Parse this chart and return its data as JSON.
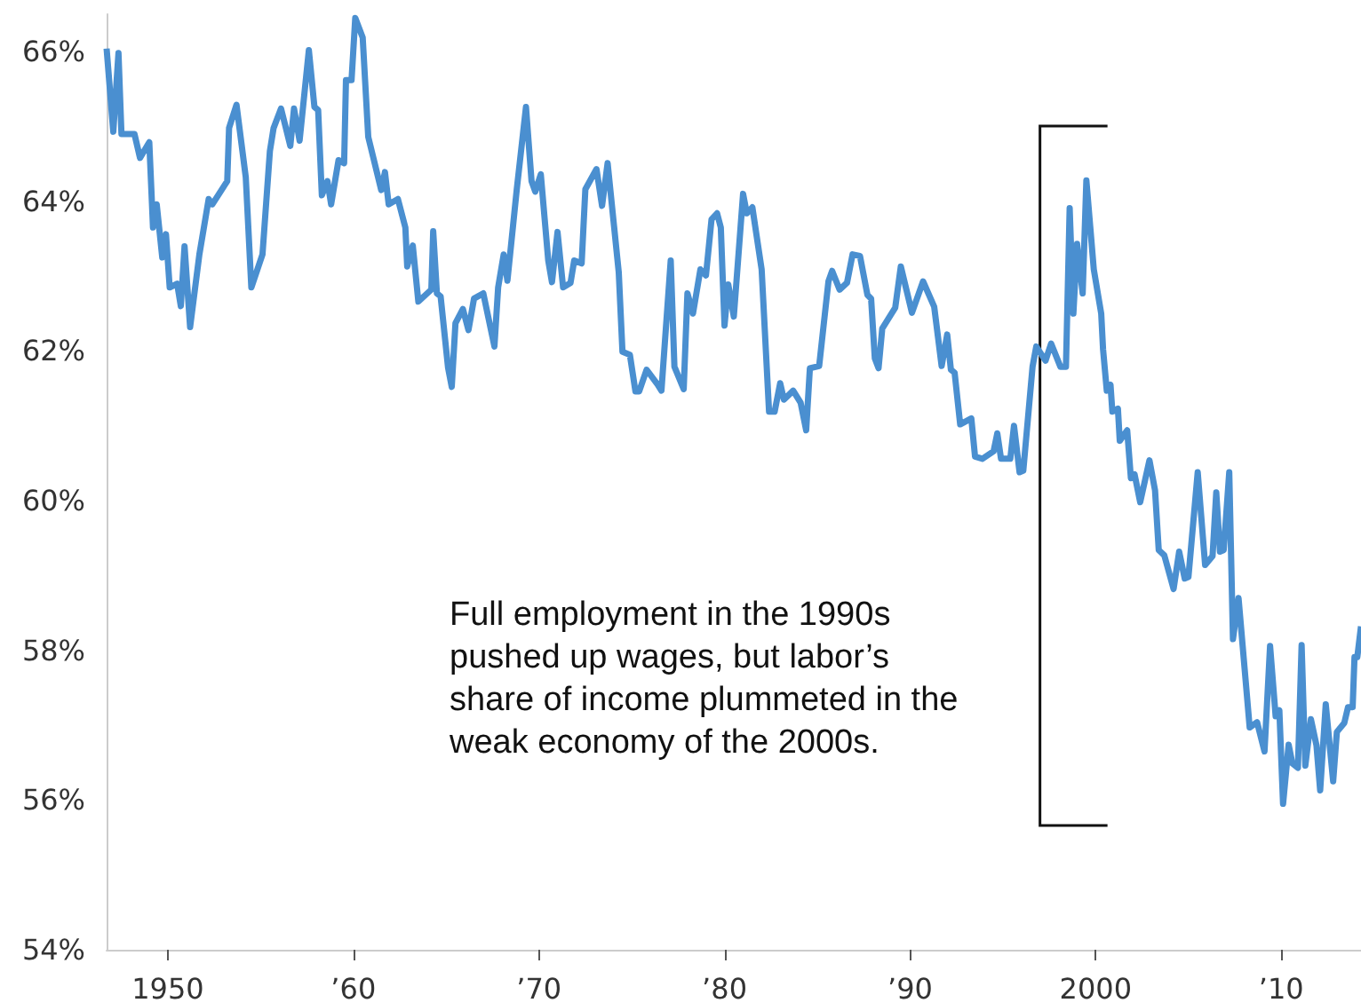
{
  "chart_data": {
    "type": "line",
    "x": [
      1946.7,
      1947.06,
      1947.34,
      1947.5,
      1948.2,
      1948.5,
      1949.0,
      1949.2,
      1949.4,
      1949.7,
      1949.9,
      1950.1,
      1950.5,
      1950.7,
      1950.9,
      1951.2,
      1951.7,
      1952.2,
      1952.4,
      1953.2,
      1953.3,
      1953.7,
      1954.2,
      1954.5,
      1955.1,
      1955.5,
      1955.7,
      1956.1,
      1956.6,
      1956.8,
      1957.1,
      1957.6,
      1957.9,
      1958.1,
      1958.3,
      1958.6,
      1958.8,
      1959.2,
      1959.5,
      1959.6,
      1959.9,
      1960.1,
      1960.5,
      1960.8,
      1961.5,
      1961.7,
      1961.9,
      1962.4,
      1962.8,
      1962.9,
      1963.2,
      1963.5,
      1964.2,
      1964.3,
      1964.5,
      1964.7,
      1965.1,
      1965.3,
      1965.5,
      1965.9,
      1966.2,
      1966.5,
      1967.0,
      1967.6,
      1967.8,
      1968.1,
      1968.3,
      1968.8,
      1969.3,
      1969.6,
      1969.8,
      1970.1,
      1970.5,
      1970.7,
      1971.0,
      1971.3,
      1971.7,
      1971.9,
      1972.3,
      1972.5,
      1973.1,
      1973.4,
      1973.7,
      1974.3,
      1974.5,
      1974.9,
      1975.2,
      1975.4,
      1975.8,
      1976.4,
      1976.6,
      1977.1,
      1977.3,
      1977.8,
      1978.0,
      1978.3,
      1978.7,
      1979.0,
      1979.3,
      1979.6,
      1979.8,
      1980.0,
      1980.2,
      1980.5,
      1981.0,
      1981.2,
      1981.5,
      1982.0,
      1982.4,
      1982.7,
      1983.0,
      1983.2,
      1983.7,
      1984.1,
      1984.4,
      1984.6,
      1985.1,
      1985.6,
      1985.8,
      1986.2,
      1986.6,
      1986.9,
      1987.3,
      1987.7,
      1987.9,
      1988.1,
      1988.3,
      1988.5,
      1989.2,
      1989.5,
      1990.1,
      1990.7,
      1991.3,
      1991.7,
      1992.0,
      1992.2,
      1992.4,
      1992.7,
      1993.3,
      1993.5,
      1993.9,
      1994.5,
      1994.7,
      1994.9,
      1995.4,
      1995.6,
      1995.9,
      1996.1,
      1996.6,
      1996.8,
      1997.3,
      1997.6,
      1998.1,
      1998.4,
      1998.6,
      1998.8,
      1999.0,
      1999.3,
      1999.5,
      1999.9,
      2000.3,
      2000.4,
      2000.6,
      2000.8,
      2000.9,
      2001.2,
      2001.3,
      2001.7,
      2001.9,
      2002.1,
      2002.4,
      2002.9,
      2003.2,
      2003.4,
      2003.7,
      2004.2,
      2004.5,
      2004.8,
      2005.0,
      2005.5,
      2005.9,
      2006.3,
      2006.5,
      2006.7,
      2006.9,
      2007.2,
      2007.4,
      2007.7,
      2008.3,
      2008.7,
      2009.1,
      2009.4,
      2009.7,
      2009.9,
      2010.1,
      2010.4,
      2010.6,
      2010.9,
      2011.1,
      2011.3,
      2011.6,
      2011.9,
      2012.1,
      2012.4,
      2012.8,
      2013.0,
      2013.4,
      2013.6,
      2013.85,
      2013.95,
      2014.1,
      2014.3
    ],
    "values": [
      66.04,
      64.93,
      65.98,
      64.9,
      64.9,
      64.58,
      64.79,
      63.65,
      63.96,
      63.25,
      63.56,
      62.85,
      62.9,
      62.6,
      63.4,
      62.32,
      63.29,
      64.03,
      63.96,
      64.27,
      64.98,
      65.29,
      64.32,
      62.85,
      63.29,
      64.67,
      64.98,
      65.24,
      64.74,
      65.24,
      64.81,
      66.02,
      65.26,
      65.22,
      64.08,
      64.27,
      63.96,
      64.55,
      64.51,
      65.62,
      65.62,
      66.45,
      66.19,
      64.86,
      64.15,
      64.39,
      63.96,
      64.03,
      63.65,
      63.13,
      63.41,
      62.66,
      62.82,
      63.6,
      62.77,
      62.73,
      61.78,
      61.52,
      62.37,
      62.56,
      62.28,
      62.7,
      62.77,
      62.06,
      62.85,
      63.29,
      62.94,
      64.15,
      65.26,
      64.27,
      64.13,
      64.36,
      63.21,
      62.92,
      63.59,
      62.85,
      62.91,
      63.21,
      63.17,
      64.16,
      64.43,
      63.94,
      64.51,
      63.05,
      61.99,
      61.95,
      61.46,
      61.46,
      61.75,
      61.55,
      61.47,
      63.21,
      61.79,
      61.49,
      62.77,
      62.5,
      63.09,
      63.01,
      63.76,
      63.84,
      63.65,
      62.34,
      62.89,
      62.46,
      64.1,
      63.84,
      63.92,
      63.09,
      61.19,
      61.19,
      61.57,
      61.35,
      61.47,
      61.31,
      60.94,
      61.77,
      61.8,
      62.93,
      63.07,
      62.82,
      62.91,
      63.29,
      63.27,
      62.75,
      62.7,
      61.9,
      61.77,
      62.3,
      62.58,
      63.13,
      62.51,
      62.93,
      62.59,
      61.8,
      62.22,
      61.75,
      61.71,
      61.02,
      61.1,
      60.59,
      60.56,
      60.66,
      60.9,
      60.56,
      60.56,
      61.0,
      60.38,
      60.4,
      61.79,
      62.06,
      61.87,
      62.1,
      61.79,
      61.79,
      63.91,
      62.5,
      63.43,
      62.77,
      64.28,
      63.09,
      62.5,
      62.02,
      61.47,
      61.55,
      61.19,
      61.23,
      60.8,
      60.94,
      60.3,
      60.35,
      59.98,
      60.54,
      60.14,
      59.34,
      59.27,
      58.82,
      59.32,
      58.96,
      58.98,
      60.38,
      59.14,
      59.26,
      60.11,
      59.32,
      59.34,
      60.38,
      58.15,
      58.7,
      56.97,
      57.04,
      56.65,
      58.06,
      57.12,
      57.2,
      55.95,
      56.74,
      56.49,
      56.43,
      58.07,
      56.46,
      57.08,
      56.73,
      56.13,
      57.28,
      56.25,
      56.91,
      57.03,
      57.24,
      57.24,
      57.91,
      57.91,
      58.32
    ],
    "color": "#4a8fd0",
    "xlim": [
      1946.7,
      2014.3
    ],
    "xticks": [
      1950,
      {
        "value": 1960,
        "label": "’60"
      },
      {
        "value": 1970,
        "label": "’70"
      },
      {
        "value": 1980,
        "label": "’80"
      },
      {
        "value": 1990,
        "label": "’90"
      },
      2000,
      {
        "value": 2010,
        "label": "’10"
      }
    ],
    "ylim": [
      54,
      66.5
    ],
    "yticks": [
      {
        "value": 54,
        "label": "54%"
      },
      {
        "value": 56,
        "label": "56%"
      },
      {
        "value": 58,
        "label": "58%"
      },
      {
        "value": 60,
        "label": "60%"
      },
      {
        "value": 62,
        "label": "62%"
      },
      {
        "value": 64,
        "label": "64%"
      },
      {
        "value": 66,
        "label": "66%"
      }
    ],
    "ref_lines": [
      {
        "axis": "x",
        "value": 1997,
        "color": "#111111"
      }
    ],
    "annotations": [
      "Full employment in the 1990s pushed up wages, but labor’s share of income plummeted in the weak economy of the 2000s."
    ]
  }
}
